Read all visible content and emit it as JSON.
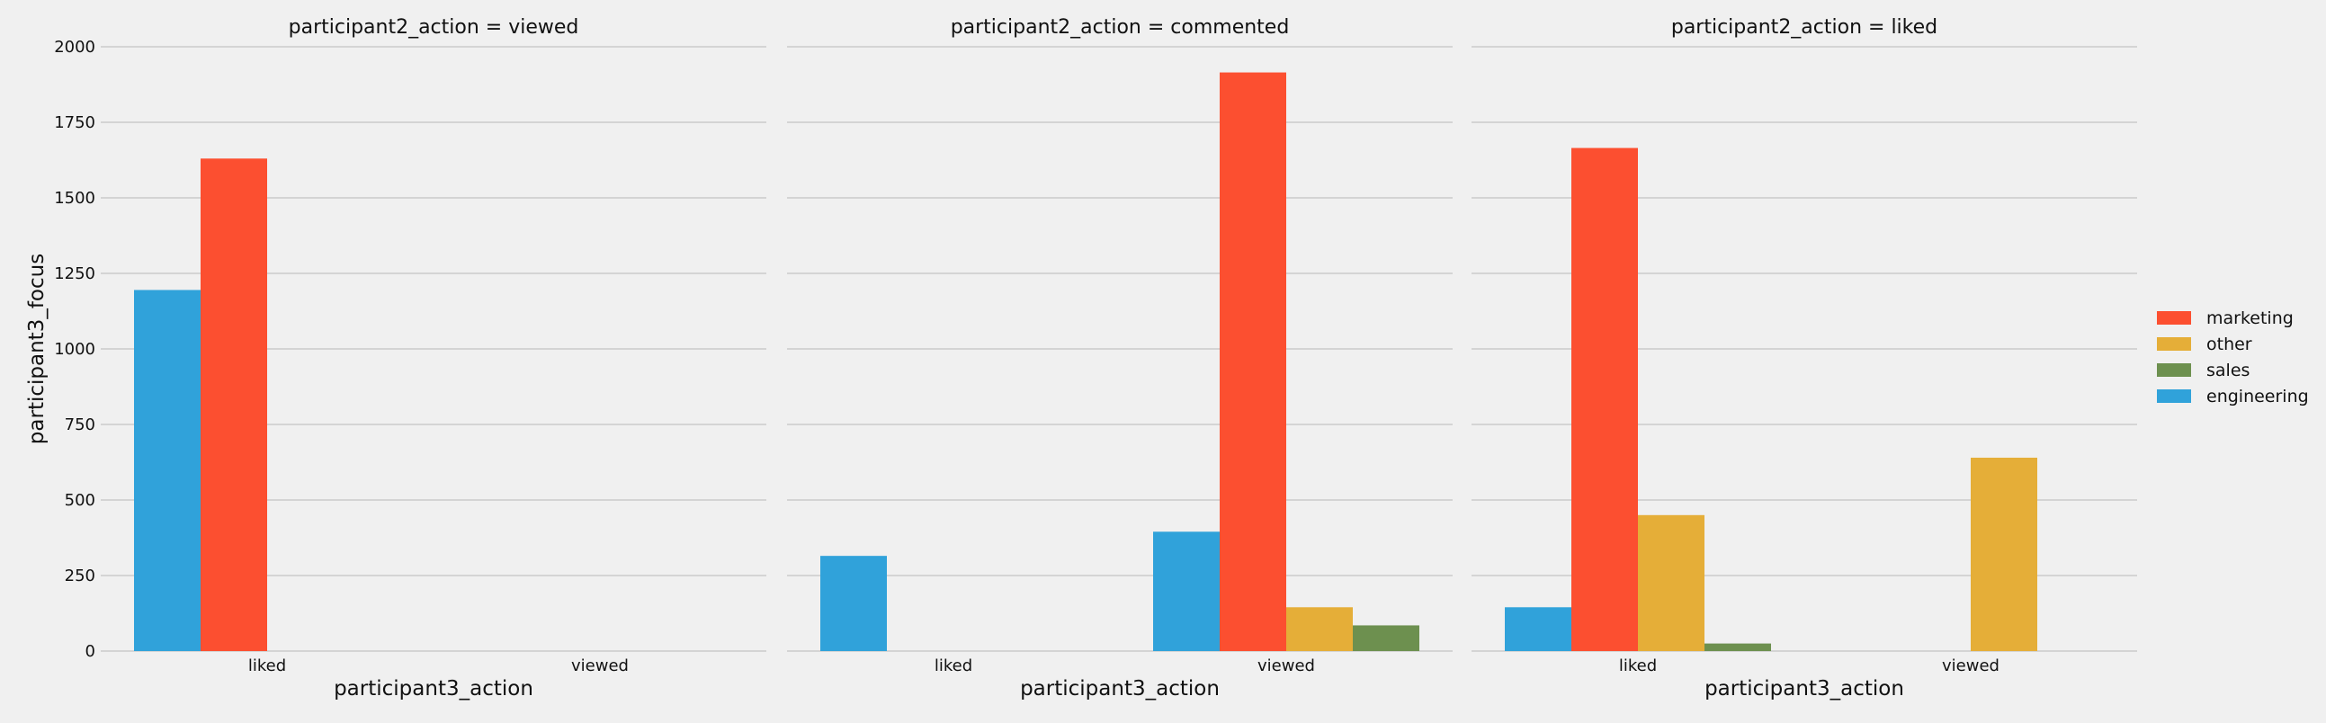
{
  "chart_data": {
    "type": "bar",
    "ylabel": "participant3_focus",
    "xlabel": "participant3_action",
    "ylim": [
      0,
      2000
    ],
    "yticks": [
      0,
      250,
      500,
      750,
      1000,
      1250,
      1500,
      1750,
      2000
    ],
    "grid": true,
    "legend_position": "right",
    "categories": [
      "liked",
      "viewed"
    ],
    "hue_order": [
      "engineering",
      "marketing",
      "other",
      "sales"
    ],
    "legend_order": [
      "marketing",
      "other",
      "sales",
      "engineering"
    ],
    "colors": {
      "engineering": "#30a2da",
      "marketing": "#fc4f30",
      "other": "#e5ae38",
      "sales": "#6d904f"
    },
    "panels": [
      {
        "title": "participant2_action = viewed",
        "series": [
          {
            "name": "engineering",
            "values": [
              1195,
              null
            ]
          },
          {
            "name": "marketing",
            "values": [
              1630,
              null
            ]
          },
          {
            "name": "other",
            "values": [
              null,
              null
            ]
          },
          {
            "name": "sales",
            "values": [
              null,
              null
            ]
          }
        ]
      },
      {
        "title": "participant2_action = commented",
        "series": [
          {
            "name": "engineering",
            "values": [
              315,
              395
            ]
          },
          {
            "name": "marketing",
            "values": [
              null,
              1915
            ]
          },
          {
            "name": "other",
            "values": [
              null,
              145
            ]
          },
          {
            "name": "sales",
            "values": [
              null,
              85
            ]
          }
        ]
      },
      {
        "title": "participant2_action = liked",
        "series": [
          {
            "name": "engineering",
            "values": [
              145,
              null
            ]
          },
          {
            "name": "marketing",
            "values": [
              1665,
              null
            ]
          },
          {
            "name": "other",
            "values": [
              450,
              640
            ]
          },
          {
            "name": "sales",
            "values": [
              25,
              null
            ]
          }
        ]
      }
    ]
  }
}
